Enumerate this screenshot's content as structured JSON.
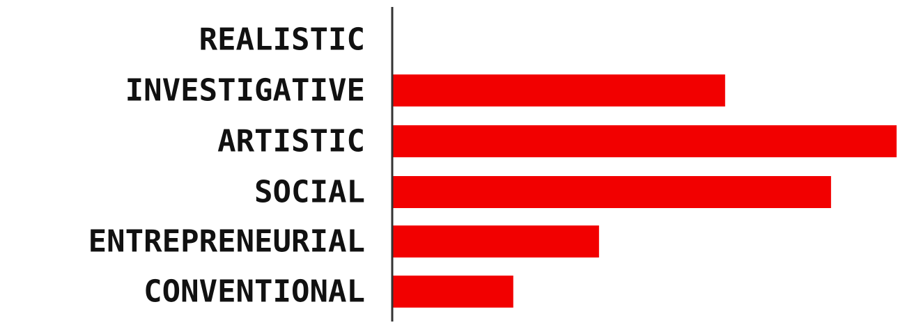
{
  "chart_data": {
    "type": "bar",
    "orientation": "horizontal",
    "categories": [
      "REALISTIC",
      "INVESTIGATIVE",
      "ARTISTIC",
      "SOCIAL",
      "ENTREPRENEURIAL",
      "CONVENTIONAL"
    ],
    "values": [
      0,
      66,
      100,
      87,
      41,
      24
    ],
    "xlim": [
      0,
      100
    ],
    "grid": false,
    "legend": "none",
    "colors": {
      "bar": "#f20000",
      "axis": "#333333",
      "label": "#111111"
    }
  }
}
